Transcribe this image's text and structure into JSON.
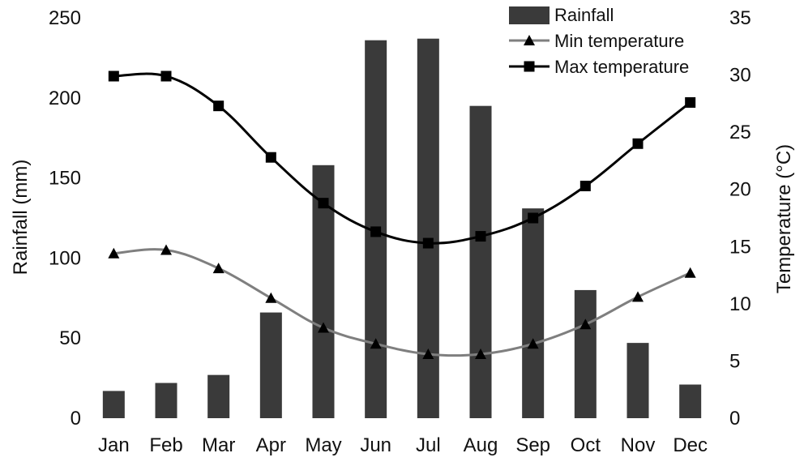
{
  "chart_data": {
    "type": "bar",
    "title": "",
    "categories": [
      "Jan",
      "Feb",
      "Mar",
      "Apr",
      "May",
      "Jun",
      "Jul",
      "Aug",
      "Sep",
      "Oct",
      "Nov",
      "Dec"
    ],
    "series": [
      {
        "name": "Rainfall",
        "type": "bar",
        "axis": "left",
        "values": [
          17,
          22,
          27,
          66,
          158,
          236,
          237,
          195,
          131,
          80,
          47,
          21
        ],
        "color": "#3a3a3a"
      },
      {
        "name": "Min temperature",
        "type": "line",
        "axis": "right",
        "marker": "triangle",
        "values": [
          14.4,
          14.7,
          13.1,
          10.5,
          7.9,
          6.5,
          5.6,
          5.6,
          6.5,
          8.2,
          10.6,
          12.7
        ],
        "color": "#7f7f7f"
      },
      {
        "name": "Max temperature",
        "type": "line",
        "axis": "right",
        "marker": "square",
        "values": [
          29.9,
          29.9,
          27.3,
          22.8,
          18.8,
          16.3,
          15.3,
          15.9,
          17.5,
          20.3,
          24.0,
          27.6
        ],
        "color": "#000000"
      }
    ],
    "yleft": {
      "label": "Rainfall (mm)",
      "lim": [
        0,
        250
      ],
      "ticks": [
        "0",
        "50",
        "100",
        "150",
        "200",
        "250"
      ]
    },
    "yright": {
      "label": "Temperature (°C)",
      "lim": [
        0,
        35
      ],
      "ticks": [
        "0",
        "5",
        "10",
        "15",
        "20",
        "25",
        "30",
        "35"
      ]
    },
    "xlabel": "",
    "grid": false,
    "legend": "top-right"
  }
}
